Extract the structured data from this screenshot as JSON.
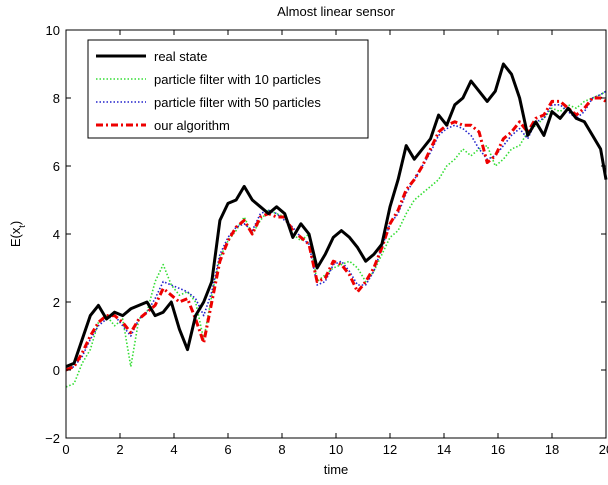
{
  "chart_data": {
    "type": "line",
    "title": "Almost linear sensor",
    "xlabel": "time",
    "ylabel": "E(x",
    "ylabel_subscript": "t",
    "ylabel_close": ")",
    "xlim": [
      0,
      20
    ],
    "ylim": [
      -2,
      10
    ],
    "xticks": [
      "0",
      "2",
      "4",
      "6",
      "8",
      "10",
      "12",
      "14",
      "16",
      "18",
      "20"
    ],
    "yticks": [
      "−2",
      "0",
      "2",
      "4",
      "6",
      "8",
      "10"
    ],
    "grid": false,
    "legend_position": "top-left",
    "series": [
      {
        "name": "real state",
        "color": "#000000",
        "style": "solid",
        "x": [
          0,
          0.3,
          0.6,
          0.9,
          1.2,
          1.5,
          1.8,
          2.1,
          2.4,
          2.7,
          3.0,
          3.3,
          3.6,
          3.9,
          4.2,
          4.5,
          4.8,
          5.1,
          5.4,
          5.7,
          6.0,
          6.3,
          6.6,
          6.9,
          7.2,
          7.5,
          7.8,
          8.1,
          8.4,
          8.7,
          9.0,
          9.3,
          9.6,
          9.9,
          10.2,
          10.5,
          10.8,
          11.1,
          11.4,
          11.7,
          12.0,
          12.3,
          12.6,
          12.9,
          13.2,
          13.5,
          13.8,
          14.1,
          14.4,
          14.7,
          15.0,
          15.3,
          15.6,
          15.9,
          16.2,
          16.5,
          16.8,
          17.1,
          17.4,
          17.7,
          18.0,
          18.3,
          18.6,
          18.9,
          19.2,
          19.5,
          19.8,
          20.0
        ],
        "values": [
          0.1,
          0.2,
          0.9,
          1.6,
          1.9,
          1.5,
          1.7,
          1.6,
          1.8,
          1.9,
          2.0,
          1.6,
          1.7,
          2.0,
          1.2,
          0.6,
          1.6,
          2.0,
          2.6,
          4.4,
          4.9,
          5.0,
          5.4,
          5.0,
          4.8,
          4.6,
          4.8,
          4.6,
          3.9,
          4.3,
          4.0,
          3.0,
          3.4,
          3.9,
          4.1,
          3.9,
          3.6,
          3.2,
          3.4,
          3.7,
          4.8,
          5.6,
          6.6,
          6.2,
          6.5,
          6.8,
          7.5,
          7.2,
          7.8,
          8.0,
          8.5,
          8.2,
          7.9,
          8.2,
          9.0,
          8.7,
          8.0,
          6.9,
          7.3,
          6.9,
          7.6,
          7.4,
          7.7,
          7.4,
          7.3,
          6.9,
          6.5,
          5.6
        ]
      },
      {
        "name": "particle filter with 10 particles",
        "color": "#33dd33",
        "style": "dotted",
        "x": [
          0,
          0.3,
          0.6,
          0.9,
          1.2,
          1.5,
          1.8,
          2.1,
          2.4,
          2.7,
          3.0,
          3.3,
          3.6,
          3.9,
          4.2,
          4.5,
          4.8,
          5.1,
          5.4,
          5.7,
          6.0,
          6.3,
          6.6,
          6.9,
          7.2,
          7.5,
          7.8,
          8.1,
          8.4,
          8.7,
          9.0,
          9.3,
          9.6,
          9.9,
          10.2,
          10.5,
          10.8,
          11.1,
          11.4,
          11.7,
          12.0,
          12.3,
          12.6,
          12.9,
          13.2,
          13.5,
          13.8,
          14.1,
          14.4,
          14.7,
          15.0,
          15.3,
          15.6,
          15.9,
          16.2,
          16.5,
          16.8,
          17.1,
          17.4,
          17.7,
          18.0,
          18.3,
          18.6,
          18.9,
          19.2,
          19.5,
          19.8,
          20.0
        ],
        "values": [
          -0.5,
          -0.4,
          0.2,
          0.6,
          1.4,
          1.6,
          1.3,
          1.5,
          0.1,
          1.5,
          1.7,
          2.6,
          3.1,
          2.5,
          2.2,
          2.3,
          2.0,
          0.9,
          2.2,
          3.3,
          3.8,
          4.1,
          4.5,
          4.0,
          4.4,
          4.7,
          4.6,
          4.5,
          4.0,
          3.8,
          4.0,
          2.6,
          2.8,
          3.0,
          3.1,
          3.2,
          3.0,
          2.6,
          2.9,
          3.4,
          3.9,
          4.1,
          4.6,
          5.0,
          5.2,
          5.4,
          5.6,
          6.0,
          6.2,
          6.5,
          6.3,
          6.5,
          6.6,
          6.0,
          6.2,
          6.5,
          6.6,
          7.0,
          7.2,
          7.4,
          7.7,
          7.6,
          7.8,
          7.7,
          7.9,
          8.0,
          8.1,
          8.2
        ]
      },
      {
        "name": "particle filter with 50 particles",
        "color": "#2222cc",
        "style": "dotted",
        "x": [
          0,
          0.3,
          0.6,
          0.9,
          1.2,
          1.5,
          1.8,
          2.1,
          2.4,
          2.7,
          3.0,
          3.3,
          3.6,
          3.9,
          4.2,
          4.5,
          4.8,
          5.1,
          5.4,
          5.7,
          6.0,
          6.3,
          6.6,
          6.9,
          7.2,
          7.5,
          7.8,
          8.1,
          8.4,
          8.7,
          9.0,
          9.3,
          9.6,
          9.9,
          10.2,
          10.5,
          10.8,
          11.1,
          11.4,
          11.7,
          12.0,
          12.3,
          12.6,
          12.9,
          13.2,
          13.5,
          13.8,
          14.1,
          14.4,
          14.7,
          15.0,
          15.3,
          15.6,
          15.9,
          16.2,
          16.5,
          16.8,
          17.1,
          17.4,
          17.7,
          18.0,
          18.3,
          18.6,
          18.9,
          19.2,
          19.5,
          19.8,
          20.0
        ],
        "values": [
          0.0,
          0.1,
          0.4,
          0.9,
          1.3,
          1.5,
          1.6,
          1.3,
          1.0,
          1.5,
          1.7,
          2.1,
          2.6,
          2.5,
          2.4,
          2.3,
          2.1,
          1.6,
          2.3,
          3.4,
          3.9,
          4.2,
          4.3,
          4.1,
          4.6,
          4.7,
          4.6,
          4.4,
          4.2,
          3.9,
          3.7,
          2.5,
          2.6,
          3.1,
          3.2,
          2.9,
          2.5,
          2.5,
          2.9,
          3.6,
          4.3,
          4.6,
          5.2,
          5.6,
          6.0,
          6.4,
          6.9,
          7.1,
          7.2,
          7.1,
          6.9,
          6.5,
          6.2,
          6.3,
          6.6,
          6.9,
          7.1,
          6.8,
          7.3,
          7.4,
          7.8,
          7.8,
          7.6,
          7.4,
          7.6,
          8.0,
          8.1,
          8.2
        ]
      },
      {
        "name": "our algorithm",
        "color": "#ee0000",
        "style": "dashdot",
        "x": [
          0,
          0.3,
          0.6,
          0.9,
          1.2,
          1.5,
          1.8,
          2.1,
          2.4,
          2.7,
          3.0,
          3.3,
          3.6,
          3.9,
          4.2,
          4.5,
          4.8,
          5.1,
          5.4,
          5.7,
          6.0,
          6.3,
          6.6,
          6.9,
          7.2,
          7.5,
          7.8,
          8.1,
          8.4,
          8.7,
          9.0,
          9.3,
          9.6,
          9.9,
          10.2,
          10.5,
          10.8,
          11.1,
          11.4,
          11.7,
          12.0,
          12.3,
          12.6,
          12.9,
          13.2,
          13.5,
          13.8,
          14.1,
          14.4,
          14.7,
          15.0,
          15.3,
          15.6,
          15.9,
          16.2,
          16.5,
          16.8,
          17.1,
          17.4,
          17.7,
          18.0,
          18.3,
          18.6,
          18.9,
          19.2,
          19.5,
          19.8,
          20.0
        ],
        "values": [
          0.0,
          0.1,
          0.5,
          1.0,
          1.4,
          1.6,
          1.6,
          1.4,
          1.1,
          1.5,
          1.7,
          1.9,
          2.4,
          2.2,
          2.0,
          2.1,
          1.5,
          0.8,
          2.0,
          3.2,
          3.8,
          4.2,
          4.4,
          4.0,
          4.5,
          4.6,
          4.5,
          4.5,
          4.1,
          3.9,
          3.7,
          2.6,
          2.7,
          3.2,
          3.1,
          2.8,
          2.3,
          2.6,
          3.0,
          3.6,
          4.3,
          4.7,
          5.3,
          5.6,
          6.0,
          6.5,
          7.0,
          7.2,
          7.3,
          7.2,
          7.2,
          7.0,
          6.1,
          6.3,
          6.8,
          7.0,
          7.3,
          7.0,
          7.4,
          7.5,
          7.9,
          7.9,
          7.7,
          7.5,
          7.7,
          8.0,
          8.0,
          7.9
        ]
      }
    ]
  }
}
